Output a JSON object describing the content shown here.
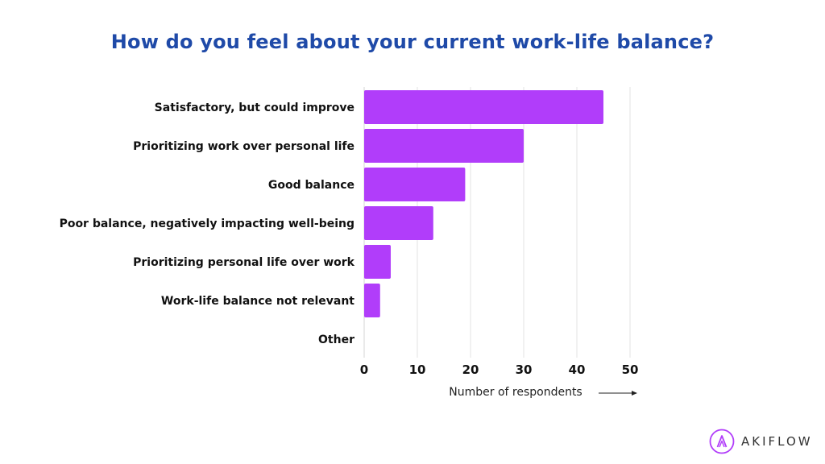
{
  "chart_data": {
    "type": "bar",
    "orientation": "horizontal",
    "title": "How do you feel about your current work-life balance?",
    "xlabel": "Number of respondents",
    "categories": [
      "Satisfactory, but could improve",
      "Prioritizing work over personal life",
      "Good balance",
      "Poor balance, negatively impacting well-being",
      "Prioritizing personal life over work",
      "Work-life balance not relevant",
      "Other"
    ],
    "values": [
      45,
      30,
      19,
      13,
      5,
      3,
      0
    ],
    "xlim": [
      0,
      50
    ],
    "xticks": [
      "0",
      "10",
      "20",
      "30",
      "40",
      "50"
    ],
    "grid": true,
    "bar_color": "#b13dfa",
    "grid_color": "#e3e3e3"
  },
  "brand": {
    "name": "AKIFLOW",
    "accent": "#b13dfa",
    "logo_icon": "akiflow-logo-icon"
  },
  "title_color": "#1f4aa8"
}
